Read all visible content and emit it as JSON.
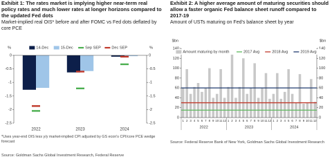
{
  "chart_data": [
    {
      "type": "bar",
      "title": "Exhibit 1: The rates market is implying higher near-term real policy rates and much lower rates at longer horizons compared to the updated Fed dots",
      "subtitle": "Market-implied real OIS* before and after FOMC vs Fed dots deflated by core PCE",
      "y_label": "%",
      "y2_label": "%",
      "categories": [
        "2022",
        "2023",
        "2024"
      ],
      "series": [
        {
          "name": "14-Dec",
          "type": "bar",
          "color": "#0d1f4a",
          "values": [
            -1.27,
            -0.63,
            -0.05
          ]
        },
        {
          "name": "15-Dec",
          "type": "bar",
          "color": "#9fc5e8",
          "values": [
            -1.2,
            -0.58,
            -0.03
          ]
        },
        {
          "name": "Sep SEP",
          "type": "marker",
          "color": "#4caf50",
          "values": [
            -2.05,
            -1.22,
            -0.33
          ]
        },
        {
          "name": "Dec SEP",
          "type": "marker",
          "color": "#c0392b",
          "values": [
            -1.87,
            -0.6,
            -0.05
          ]
        }
      ],
      "ylim": [
        -2.5,
        0
      ],
      "yticks": [
        0,
        -0.5,
        -1,
        -1.5,
        -2,
        -2.5
      ],
      "y2lim": [
        -2.5,
        0
      ],
      "y2ticks": [
        0,
        -0.5,
        -1,
        -1.5,
        -2,
        -2.5
      ],
      "grid": false,
      "legend": "top",
      "note": "*Uses year-end OIS less y/y market-implied CPI adjusted by GS econ's CPI/core PCE wedge forecast",
      "source": "Source: Goldman Sachs Global Investment Research, Federal Reserve"
    },
    {
      "type": "bar",
      "title": "Exhibit 2: A higher average amount of maturing securities should allow a faster organic Fed balance sheet runoff compared to 2017-19",
      "subtitle": "Amount of USTs maturing on Fed's balance sheet by year",
      "y_label": "$bn",
      "y2_label": "$bn",
      "categories": [
        "1",
        "2",
        "3",
        "4",
        "5",
        "6",
        "7",
        "8",
        "9",
        "10",
        "11",
        "12",
        "1",
        "2",
        "3",
        "4",
        "5",
        "6",
        "7",
        "8",
        "9",
        "10",
        "11",
        "12",
        "1",
        "2",
        "3",
        "4",
        "5",
        "6",
        "7",
        "8",
        "9",
        "10",
        "11",
        "12"
      ],
      "groups": [
        "2022",
        "2023",
        "2024"
      ],
      "series": [
        {
          "name": "Amount maturing by month",
          "type": "bar",
          "color": "#c8c8c8",
          "values": [
            60,
            98,
            48,
            62,
            70,
            52,
            60,
            100,
            40,
            48,
            98,
            40,
            62,
            130,
            40,
            62,
            120,
            48,
            60,
            110,
            40,
            60,
            90,
            38,
            48,
            90,
            38,
            52,
            98,
            48,
            30,
            88,
            28,
            30,
            78,
            32
          ]
        },
        {
          "name": "2017 Avg",
          "type": "hline",
          "color": "#5cb85c",
          "value": 15
        },
        {
          "name": "2018 Avg",
          "type": "hline",
          "color": "#c0392b",
          "value": 30
        },
        {
          "name": "2019 Avg",
          "type": "hline",
          "color": "#1f3a6e",
          "value": 60
        }
      ],
      "ylim": [
        0,
        140
      ],
      "yticks": [
        0,
        20,
        40,
        60,
        80,
        100,
        120,
        140
      ],
      "y2lim": [
        0,
        140
      ],
      "y2ticks": [
        0,
        20,
        40,
        60,
        80,
        100,
        120,
        140
      ],
      "grid": false,
      "legend": "top",
      "source": "Source: Federal Reserve Bank of New York, Goldman Sachs Global Investment Research"
    }
  ]
}
